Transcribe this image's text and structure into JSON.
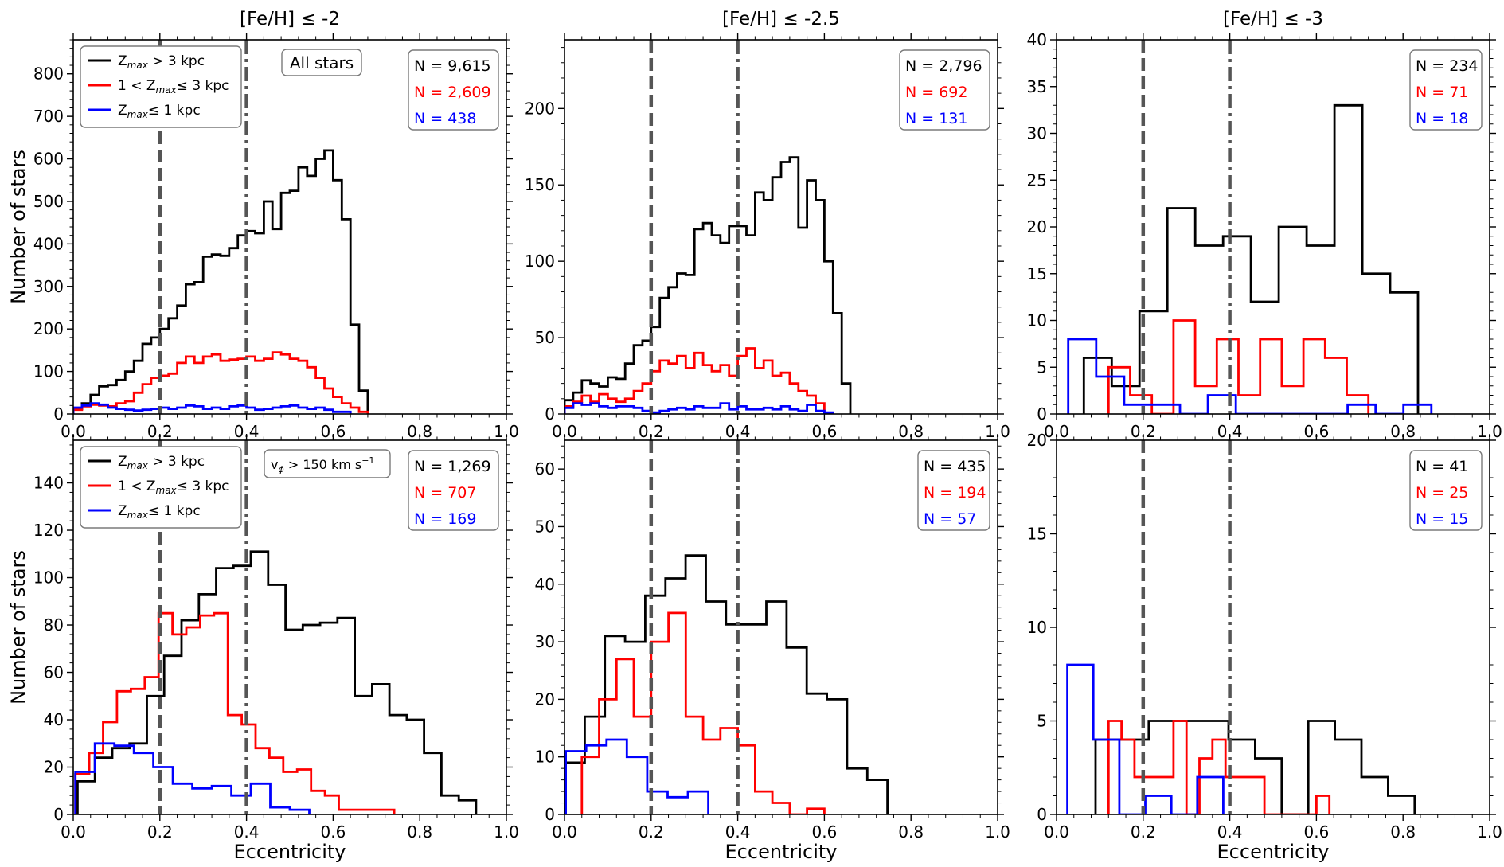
{
  "chart_data": [
    {
      "type": "step-histogram",
      "panel": "top-left",
      "title": "[Fe/H] ≤ -2",
      "xlabel": "",
      "ylabel": "Number of stars",
      "xlim": [
        0,
        1.0
      ],
      "ylim": [
        0,
        880
      ],
      "xticks": [
        "0.0",
        "0.2",
        "0.4",
        "0.6",
        "0.8",
        "1.0"
      ],
      "yticks": [
        0,
        100,
        200,
        300,
        400,
        500,
        600,
        700,
        800
      ],
      "bin_width": 0.02,
      "tag": "All stars",
      "vlines": [
        {
          "x": 0.2,
          "style": "dashed"
        },
        {
          "x": 0.4,
          "style": "dashdot"
        }
      ],
      "counts": [
        {
          "label": "N = 9,615",
          "color": "#000000"
        },
        {
          "label": "N = 2,609",
          "color": "#ff0000"
        },
        {
          "label": "N = 438",
          "color": "#0000ff"
        }
      ],
      "legend": [
        {
          "pre": "Z",
          "sub": "max",
          "post": " > 3 kpc",
          "color": "#000000"
        },
        {
          "pre": "1 < Z",
          "sub": "max",
          "post": "≤  3 kpc",
          "color": "#ff0000"
        },
        {
          "pre": "Z",
          "sub": "max",
          "post": "≤  1 kpc",
          "color": "#0000ff"
        }
      ],
      "series": [
        {
          "name": "black",
          "color": "#000000",
          "start": 0.0,
          "values": [
            12,
            25,
            45,
            65,
            68,
            80,
            100,
            125,
            165,
            180,
            200,
            225,
            255,
            305,
            310,
            370,
            375,
            372,
            390,
            420,
            430,
            425,
            500,
            435,
            520,
            525,
            580,
            560,
            600,
            620,
            550,
            458,
            210,
            55
          ]
        },
        {
          "name": "red",
          "color": "#ff0000",
          "start": 0.0,
          "values": [
            10,
            18,
            22,
            20,
            18,
            25,
            30,
            50,
            70,
            85,
            90,
            95,
            120,
            135,
            120,
            135,
            140,
            125,
            128,
            130,
            135,
            125,
            130,
            145,
            140,
            130,
            125,
            110,
            85,
            60,
            40,
            25,
            15,
            5
          ]
        },
        {
          "name": "blue",
          "color": "#0000ff",
          "start": 0.0,
          "values": [
            15,
            20,
            25,
            22,
            15,
            12,
            10,
            8,
            10,
            12,
            15,
            12,
            15,
            20,
            18,
            12,
            15,
            12,
            18,
            20,
            15,
            10,
            12,
            15,
            18,
            20,
            15,
            12,
            15,
            10,
            5,
            5
          ]
        }
      ]
    },
    {
      "type": "step-histogram",
      "panel": "top-middle",
      "title": "[Fe/H] ≤ -2.5",
      "xlim": [
        0,
        1.0
      ],
      "ylim": [
        0,
        245
      ],
      "xticks": [
        "0.0",
        "0.2",
        "0.4",
        "0.6",
        "0.8",
        "1.0"
      ],
      "yticks": [
        0,
        50,
        100,
        150,
        200
      ],
      "bin_width": 0.02,
      "vlines": [
        {
          "x": 0.2,
          "style": "dashed"
        },
        {
          "x": 0.4,
          "style": "dashdot"
        }
      ],
      "counts": [
        {
          "label": "N = 2,796",
          "color": "#000000"
        },
        {
          "label": "N = 692",
          "color": "#ff0000"
        },
        {
          "label": "N = 131",
          "color": "#0000ff"
        }
      ],
      "series": [
        {
          "name": "black",
          "color": "#000000",
          "start": 0.0,
          "values": [
            9,
            14,
            22,
            20,
            18,
            24,
            23,
            33,
            45,
            48,
            57,
            76,
            83,
            92,
            91,
            121,
            125,
            117,
            112,
            123,
            123,
            117,
            145,
            140,
            155,
            165,
            168,
            122,
            153,
            140,
            100,
            66,
            20
          ]
        },
        {
          "name": "red",
          "color": "#ff0000",
          "start": 0.0,
          "values": [
            5,
            8,
            12,
            8,
            13,
            10,
            8,
            10,
            15,
            20,
            28,
            35,
            33,
            38,
            30,
            40,
            32,
            28,
            32,
            25,
            38,
            43,
            30,
            35,
            25,
            27,
            20,
            15,
            12,
            7
          ]
        },
        {
          "name": "blue",
          "color": "#0000ff",
          "start": 0.0,
          "values": [
            4,
            7,
            6,
            7,
            5,
            4,
            5,
            5,
            4,
            2,
            1,
            2,
            3,
            4,
            3,
            5,
            4,
            4,
            7,
            3,
            5,
            3,
            3,
            4,
            3,
            5,
            3,
            2,
            6,
            2,
            1
          ]
        }
      ]
    },
    {
      "type": "step-histogram",
      "panel": "top-right",
      "title": "[Fe/H] ≤ -3",
      "xlim": [
        0,
        1.0
      ],
      "ylim": [
        0,
        40
      ],
      "xticks": [
        "0.0",
        "0.2",
        "0.4",
        "0.6",
        "0.8",
        "1.0"
      ],
      "yticks": [
        0,
        5,
        10,
        15,
        20,
        25,
        30,
        35,
        40
      ],
      "bin_width": 0.0662,
      "vlines": [
        {
          "x": 0.2,
          "style": "dashed"
        },
        {
          "x": 0.4,
          "style": "dashdot"
        }
      ],
      "counts": [
        {
          "label": "N = 234",
          "color": "#000000"
        },
        {
          "label": "N = 71",
          "color": "#ff0000"
        },
        {
          "label": "N = 18",
          "color": "#0000ff"
        }
      ],
      "series": [
        {
          "name": "black",
          "color": "#000000",
          "start": 0.063,
          "width": 0.0643,
          "values": [
            6,
            3,
            11,
            22,
            18,
            19,
            12,
            20,
            18,
            33,
            15,
            13
          ]
        },
        {
          "name": "red",
          "color": "#ff0000",
          "start": 0.12,
          "width": 0.05,
          "values": [
            5,
            2,
            0,
            10,
            3,
            8,
            2,
            8,
            3,
            8,
            6,
            2
          ]
        },
        {
          "name": "blue",
          "color": "#0000ff",
          "start": 0.027,
          "width": 0.0645,
          "values": [
            8,
            4,
            1,
            1,
            0,
            2,
            0,
            0,
            0,
            0,
            1,
            0,
            1
          ]
        }
      ]
    },
    {
      "type": "step-histogram",
      "panel": "bottom-left",
      "xlabel": "Eccentricity",
      "ylabel": "Number of stars",
      "xlim": [
        0,
        1.0
      ],
      "ylim": [
        0,
        158
      ],
      "xticks": [
        "0.0",
        "0.2",
        "0.4",
        "0.6",
        "0.8",
        "1.0"
      ],
      "yticks": [
        0,
        20,
        40,
        60,
        80,
        100,
        120,
        140
      ],
      "tag": "v",
      "tag_sub": "ϕ",
      "tag_post": " > 150 km s",
      "tag_sup": "−1",
      "vlines": [
        {
          "x": 0.2,
          "style": "dashed"
        },
        {
          "x": 0.4,
          "style": "dashdot"
        }
      ],
      "counts": [
        {
          "label": "N = 1,269",
          "color": "#000000"
        },
        {
          "label": "N = 707",
          "color": "#ff0000"
        },
        {
          "label": "N = 169",
          "color": "#0000ff"
        }
      ],
      "legend": [
        {
          "pre": "Z",
          "sub": "max",
          "post": " > 3 kpc",
          "color": "#000000"
        },
        {
          "pre": "1 < Z",
          "sub": "max",
          "post": "≤  3 kpc",
          "color": "#ff0000"
        },
        {
          "pre": "Z",
          "sub": "max",
          "post": "≤  1 kpc",
          "color": "#0000ff"
        }
      ],
      "series": [
        {
          "name": "black",
          "color": "#000000",
          "start": 0.01,
          "width": 0.04,
          "values": [
            14,
            24,
            28,
            30,
            50,
            67,
            82,
            93,
            104,
            105,
            111,
            97,
            78,
            80,
            81,
            83,
            50,
            55,
            42,
            40,
            26,
            8,
            6
          ]
        },
        {
          "name": "red",
          "color": "#ff0000",
          "start": 0.005,
          "width": 0.032,
          "values": [
            17,
            26,
            39,
            52,
            53,
            58,
            85,
            76,
            79,
            84,
            85,
            42,
            38,
            28,
            24,
            18,
            19,
            10,
            8,
            2,
            2,
            2,
            2
          ]
        },
        {
          "name": "blue",
          "color": "#0000ff",
          "start": 0.005,
          "width": 0.045,
          "values": [
            18,
            30,
            29,
            26,
            20,
            13,
            11,
            12,
            8,
            13,
            3,
            2
          ]
        }
      ]
    },
    {
      "type": "step-histogram",
      "panel": "bottom-middle",
      "xlabel": "Eccentricity",
      "xlim": [
        0,
        1.0
      ],
      "ylim": [
        0,
        65
      ],
      "xticks": [
        "0.0",
        "0.2",
        "0.4",
        "0.6",
        "0.8",
        "1.0"
      ],
      "yticks": [
        0,
        10,
        20,
        30,
        40,
        50,
        60
      ],
      "vlines": [
        {
          "x": 0.2,
          "style": "dashed"
        },
        {
          "x": 0.4,
          "style": "dashdot"
        }
      ],
      "counts": [
        {
          "label": "N = 435",
          "color": "#000000"
        },
        {
          "label": "N = 194",
          "color": "#ff0000"
        },
        {
          "label": "N = 57",
          "color": "#0000ff"
        }
      ],
      "series": [
        {
          "name": "black",
          "color": "#000000",
          "start": 0.0,
          "width": 0.0466,
          "values": [
            9,
            17,
            31,
            30,
            38,
            41,
            45,
            37,
            33,
            33,
            37,
            29,
            21,
            20,
            8,
            6
          ]
        },
        {
          "name": "red",
          "color": "#ff0000",
          "start": 0.04,
          "width": 0.04,
          "values": [
            10,
            20,
            27,
            17,
            30,
            35,
            17,
            13,
            15,
            12,
            4,
            2,
            0,
            1
          ]
        },
        {
          "name": "blue",
          "color": "#0000ff",
          "start": 0.003,
          "width": 0.047,
          "values": [
            11,
            12,
            13,
            10,
            4,
            3,
            4
          ]
        }
      ]
    },
    {
      "type": "step-histogram",
      "panel": "bottom-right",
      "xlabel": "Eccentricity",
      "xlim": [
        0,
        1.0
      ],
      "ylim": [
        0,
        20
      ],
      "xticks": [
        "0.0",
        "0.2",
        "0.4",
        "0.6",
        "0.8",
        "1.0"
      ],
      "yticks": [
        0,
        5,
        10,
        15,
        20
      ],
      "vlines": [
        {
          "x": 0.2,
          "style": "dashed"
        },
        {
          "x": 0.4,
          "style": "dashdot"
        }
      ],
      "counts": [
        {
          "label": "N = 41",
          "color": "#000000"
        },
        {
          "label": "N = 25",
          "color": "#ff0000"
        },
        {
          "label": "N = 15",
          "color": "#0000ff"
        }
      ],
      "series": [
        {
          "name": "black",
          "color": "#000000",
          "start": 0.09,
          "width": 0.0614,
          "values": [
            4,
            4,
            5,
            5,
            5,
            4,
            3,
            0,
            5,
            4,
            2,
            1
          ]
        },
        {
          "name": "red",
          "color": "#ff0000",
          "start": 0.12,
          "width": 0.03,
          "values": [
            5,
            4,
            2,
            2,
            2,
            5,
            0,
            3,
            4,
            2,
            2,
            2,
            0,
            0,
            0,
            0,
            1
          ]
        },
        {
          "name": "blue",
          "color": "#0000ff",
          "start": 0.025,
          "width": 0.06,
          "values": [
            8,
            4,
            0,
            1,
            0,
            2
          ]
        }
      ]
    }
  ]
}
